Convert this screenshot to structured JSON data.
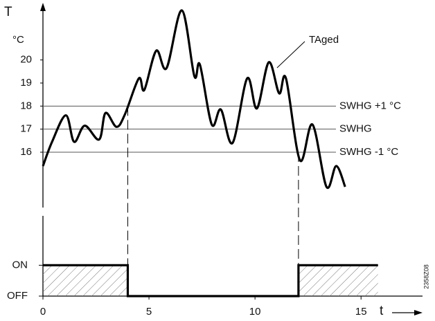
{
  "chart_data": [
    {
      "type": "line",
      "y_label": "T",
      "y_unit": "°C",
      "xlim": [
        0,
        17.9
      ],
      "ylim": [
        13.6,
        22.3
      ],
      "yticks": [
        16,
        17,
        18,
        19,
        20
      ],
      "x": [
        0,
        0.43,
        1.08,
        1.47,
        1.97,
        2.65,
        2.95,
        3.47,
        3.87,
        4.52,
        4.78,
        5.34,
        5.83,
        6.55,
        7.14,
        7.4,
        7.96,
        8.39,
        8.94,
        9.63,
        10.09,
        10.65,
        11.14,
        11.46,
        12.12,
        12.71,
        13.37,
        13.83,
        14.25
      ],
      "series": [
        {
          "name": "TAged",
          "color": "#000000",
          "values": [
            15.4,
            16.45,
            17.6,
            16.45,
            17.15,
            16.55,
            17.7,
            17.1,
            17.65,
            19.2,
            18.7,
            20.4,
            19.65,
            22.15,
            19.3,
            19.8,
            17.2,
            17.85,
            16.4,
            19.2,
            17.9,
            19.9,
            18.55,
            19.2,
            15.65,
            17.2,
            14.5,
            15.4,
            14.5
          ]
        }
      ],
      "hlines": [
        {
          "value": 18,
          "label": "SWHG +1 °C"
        },
        {
          "value": 17,
          "label": "SWHG"
        },
        {
          "value": 16,
          "label": "SWHG  -1 °C"
        }
      ]
    },
    {
      "type": "step",
      "x_label": "t",
      "annotation": "2358Z08",
      "xlim": [
        0,
        17.9
      ],
      "xticks": [
        0,
        5,
        10,
        15
      ],
      "ylim": [
        0,
        2.6
      ],
      "yticks": [
        {
          "value": 1,
          "label": "ON"
        },
        {
          "value": 0,
          "label": "OFF"
        }
      ],
      "x": [
        0,
        4.0,
        4.0,
        12.05,
        12.05,
        15.8
      ],
      "values": [
        1,
        1,
        0,
        0,
        1,
        1
      ],
      "color": "#000000"
    }
  ]
}
